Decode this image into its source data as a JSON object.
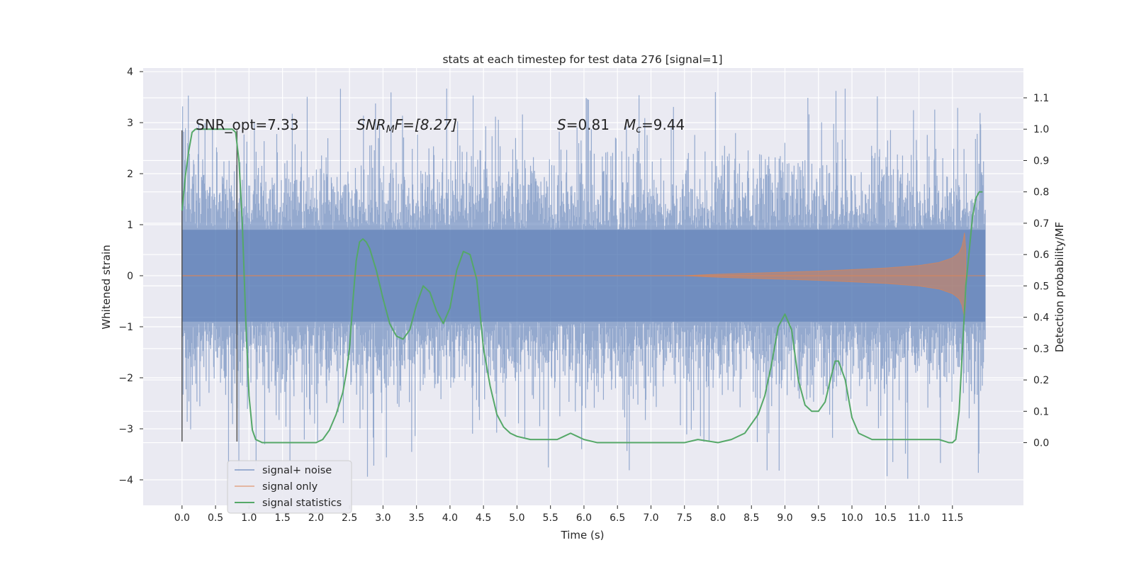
{
  "chart_data": {
    "type": "line",
    "title": "stats at each timestep for test data 276 [signal=1]",
    "xlabel": "Time (s)",
    "ylabel_left": "Whitened strain",
    "ylabel_right": "Detection probability/MF",
    "xlim": [
      -0.58,
      12.56
    ],
    "ylim_left": [
      -4.5,
      4.07
    ],
    "ylim_right": [
      -0.2,
      1.195
    ],
    "x_ticks": [
      "0.0",
      "0.5",
      "1.0",
      "1.5",
      "2.0",
      "2.5",
      "3.0",
      "3.5",
      "4.0",
      "4.5",
      "5.0",
      "5.5",
      "6.0",
      "6.5",
      "7.0",
      "7.5",
      "8.0",
      "8.5",
      "9.0",
      "9.5",
      "10.0",
      "10.5",
      "11.0",
      "11.5"
    ],
    "y_ticks_left": [
      "−4",
      "−3",
      "−2",
      "−1",
      "0",
      "1",
      "2",
      "3",
      "4"
    ],
    "y_ticks_right": [
      "0.0",
      "0.1",
      "0.2",
      "0.3",
      "0.4",
      "0.5",
      "0.6",
      "0.7",
      "0.8",
      "0.9",
      "1.0",
      "1.1"
    ],
    "grid": true,
    "legend_position": "lower-left",
    "annotations": {
      "snr_opt": "SNR_opt=7.33",
      "snr_mf_base": "SNR",
      "snr_mf_sub": "M",
      "snr_mf_rest": "F=[8.27]",
      "s_sym": "S",
      "s_val": "=0.81",
      "mc_base": "M",
      "mc_sub": "c",
      "mc_val": "=9.44"
    },
    "vertical_lines": [
      {
        "x": 0.0,
        "y_range": [
          -3.25,
          2.85
        ]
      },
      {
        "x": 0.82,
        "y_range": [
          -3.25,
          2.85
        ]
      }
    ],
    "series": [
      {
        "name": "signal+ noise",
        "color": "#4c72b0",
        "x_range": [
          0.0,
          11.99
        ],
        "description_values": {
          "typical_band": [
            -1.6,
            1.6
          ],
          "extreme_range": [
            -4.1,
            3.7
          ]
        }
      },
      {
        "name": "signal only",
        "color": "#dd8452",
        "envelope": {
          "x": [
            0.0,
            7.5,
            8.0,
            8.5,
            9.0,
            9.5,
            10.0,
            10.5,
            11.0,
            11.3,
            11.5,
            11.6,
            11.65,
            11.68,
            11.7
          ],
          "amplitude": [
            0.0,
            0.0,
            0.03,
            0.05,
            0.07,
            0.09,
            0.12,
            0.15,
            0.2,
            0.26,
            0.35,
            0.45,
            0.6,
            0.85,
            0.5
          ]
        }
      },
      {
        "name": "signal statistics",
        "color": "#55a868",
        "axis": "right",
        "x": [
          0.0,
          0.05,
          0.1,
          0.15,
          0.2,
          0.3,
          0.4,
          0.5,
          0.6,
          0.7,
          0.75,
          0.8,
          0.85,
          0.9,
          0.95,
          1.0,
          1.05,
          1.1,
          1.2,
          1.5,
          1.8,
          2.0,
          2.1,
          2.2,
          2.3,
          2.4,
          2.45,
          2.5,
          2.55,
          2.6,
          2.65,
          2.7,
          2.75,
          2.8,
          2.9,
          3.0,
          3.1,
          3.2,
          3.3,
          3.4,
          3.5,
          3.6,
          3.7,
          3.8,
          3.9,
          4.0,
          4.1,
          4.2,
          4.3,
          4.4,
          4.5,
          4.6,
          4.7,
          4.8,
          4.9,
          5.0,
          5.2,
          5.4,
          5.6,
          5.7,
          5.8,
          5.9,
          6.0,
          6.2,
          6.5,
          7.0,
          7.3,
          7.5,
          7.7,
          8.0,
          8.2,
          8.4,
          8.5,
          8.6,
          8.7,
          8.8,
          8.9,
          9.0,
          9.1,
          9.2,
          9.3,
          9.4,
          9.5,
          9.6,
          9.7,
          9.75,
          9.8,
          9.9,
          10.0,
          10.1,
          10.3,
          10.5,
          10.8,
          11.0,
          11.3,
          11.45,
          11.5,
          11.55,
          11.6,
          11.7,
          11.8,
          11.85,
          11.9,
          11.95
        ],
        "y": [
          0.74,
          0.85,
          0.93,
          0.99,
          1.0,
          1.0,
          1.0,
          1.0,
          1.0,
          1.0,
          1.0,
          0.99,
          0.9,
          0.7,
          0.4,
          0.15,
          0.04,
          0.01,
          0.0,
          0.0,
          0.0,
          0.0,
          0.01,
          0.04,
          0.09,
          0.16,
          0.22,
          0.3,
          0.45,
          0.58,
          0.64,
          0.65,
          0.64,
          0.62,
          0.55,
          0.46,
          0.38,
          0.34,
          0.33,
          0.36,
          0.44,
          0.5,
          0.48,
          0.42,
          0.38,
          0.43,
          0.55,
          0.61,
          0.6,
          0.52,
          0.3,
          0.18,
          0.09,
          0.05,
          0.03,
          0.02,
          0.01,
          0.01,
          0.01,
          0.02,
          0.03,
          0.02,
          0.01,
          0.0,
          0.0,
          0.0,
          0.0,
          0.0,
          0.01,
          0.0,
          0.01,
          0.03,
          0.06,
          0.09,
          0.15,
          0.25,
          0.37,
          0.41,
          0.36,
          0.2,
          0.12,
          0.1,
          0.1,
          0.13,
          0.22,
          0.26,
          0.26,
          0.2,
          0.08,
          0.03,
          0.01,
          0.01,
          0.01,
          0.01,
          0.01,
          0.0,
          0.0,
          0.01,
          0.1,
          0.5,
          0.72,
          0.78,
          0.8,
          0.8
        ]
      }
    ]
  }
}
